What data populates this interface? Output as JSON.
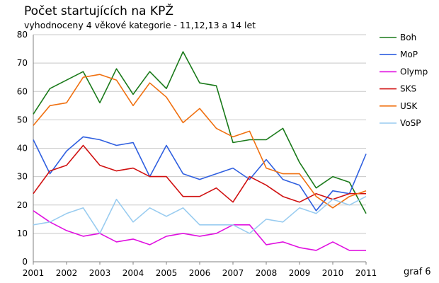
{
  "chart_data": {
    "type": "line",
    "title": "Počet startujících na KPŽ",
    "subtitle": "vyhodnoceny 4 věkové kategorie - 11,12,13 a 14 let",
    "note": "graf 6",
    "xlabel": "",
    "ylabel": "",
    "x_ticks": [
      "2001",
      "2002",
      "2003",
      "2004",
      "2005",
      "2006",
      "2007",
      "2008",
      "2009",
      "2010",
      "2011"
    ],
    "xlim": [
      2001,
      2011
    ],
    "ylim": [
      0,
      80
    ],
    "y_ticks": [
      0,
      10,
      20,
      30,
      40,
      50,
      60,
      70,
      80
    ],
    "grid": true,
    "legend_position": "right",
    "x": [
      2001.0,
      2001.5,
      2002.0,
      2002.5,
      2003.0,
      2003.5,
      2004.0,
      2004.5,
      2005.0,
      2005.5,
      2006.0,
      2006.5,
      2007.0,
      2007.5,
      2008.0,
      2008.5,
      2009.0,
      2009.5,
      2010.0,
      2010.5,
      2011.0
    ],
    "series": [
      {
        "name": "Boh",
        "color": "#1a7a1a",
        "values": [
          52,
          61,
          64,
          67,
          56,
          68,
          59,
          67,
          61,
          74,
          63,
          62,
          42,
          43,
          43,
          47,
          35,
          26,
          30,
          28,
          17
        ]
      },
      {
        "name": "MoP",
        "color": "#3060e0",
        "values": [
          43,
          31,
          39,
          44,
          43,
          41,
          42,
          30,
          41,
          31,
          29,
          31,
          33,
          29,
          36,
          29,
          27,
          18,
          25,
          24,
          38
        ]
      },
      {
        "name": "Olymp",
        "color": "#e010e0",
        "values": [
          18,
          14,
          11,
          9,
          10,
          7,
          8,
          6,
          9,
          10,
          9,
          10,
          13,
          13,
          6,
          7,
          5,
          4,
          7,
          4,
          4
        ]
      },
      {
        "name": "SKS",
        "color": "#d01010",
        "values": [
          24,
          32,
          34,
          41,
          34,
          32,
          33,
          30,
          30,
          23,
          23,
          26,
          21,
          30,
          27,
          23,
          21,
          24,
          22,
          24,
          24
        ]
      },
      {
        "name": "USK",
        "color": "#f07010",
        "values": [
          48,
          55,
          56,
          65,
          66,
          64,
          55,
          63,
          58,
          49,
          54,
          47,
          44,
          46,
          33,
          31,
          31,
          23,
          19,
          23,
          25
        ]
      },
      {
        "name": "VoSP",
        "color": "#99ccf0",
        "values": [
          13,
          14,
          17,
          19,
          10,
          22,
          14,
          19,
          16,
          19,
          13,
          13,
          13,
          10,
          15,
          14,
          19,
          17,
          22,
          20,
          23
        ]
      }
    ]
  }
}
